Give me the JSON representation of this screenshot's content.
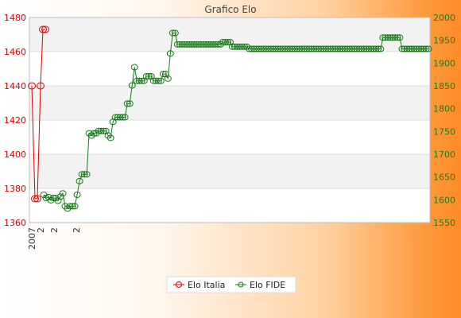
{
  "chart_data": {
    "type": "line",
    "title": "Grafico Elo",
    "grid": true,
    "legend_position": "bottom-center",
    "xlabel": "",
    "y_left": {
      "label": "",
      "ylim": [
        1360,
        1480
      ],
      "ticks": [
        1360,
        1380,
        1400,
        1420,
        1440,
        1460,
        1480
      ],
      "color": "#e00000"
    },
    "y_right": {
      "label": "",
      "ylim": [
        1550,
        2000
      ],
      "ticks": [
        1550,
        1600,
        1650,
        1700,
        1750,
        1800,
        1850,
        1900,
        1950,
        2000
      ],
      "color": "#1a7a1a"
    },
    "x_tick_labels": [
      "2007",
      "2",
      "2",
      "2"
    ],
    "series": [
      {
        "name": "Elo Italia",
        "axis": "left",
        "color": "#e00000",
        "values": [
          1440,
          1374,
          1374,
          1440,
          1473,
          1473
        ]
      },
      {
        "name": "Elo FIDE",
        "axis": "right",
        "color": "#1a7a1a",
        "values": [
          1611,
          1604,
          1606,
          1599,
          1604,
          1604,
          1598,
          1607,
          1614,
          1586,
          1581,
          1586,
          1586,
          1586,
          1611,
          1641,
          1656,
          1656,
          1656,
          1746,
          1741,
          1746,
          1746,
          1751,
          1751,
          1751,
          1751,
          1741,
          1736,
          1771,
          1781,
          1781,
          1781,
          1781,
          1781,
          1811,
          1811,
          1851,
          1891,
          1861,
          1861,
          1861,
          1861,
          1871,
          1871,
          1871,
          1861,
          1861,
          1861,
          1861,
          1876,
          1876,
          1866,
          1921,
          1966,
          1966,
          1941,
          1941,
          1941,
          1941,
          1941,
          1941,
          1941,
          1941,
          1941,
          1941,
          1941,
          1941,
          1941,
          1941,
          1941,
          1941,
          1941,
          1941,
          1941,
          1946,
          1946,
          1946,
          1946,
          1936,
          1936,
          1936,
          1936,
          1936,
          1936,
          1936,
          1931,
          1931,
          1931,
          1931,
          1931,
          1931,
          1931,
          1931,
          1931,
          1931,
          1931,
          1931,
          1931,
          1931,
          1931,
          1931,
          1931,
          1931,
          1931,
          1931,
          1931,
          1931,
          1931,
          1931,
          1931,
          1931,
          1931,
          1931,
          1931,
          1931,
          1931,
          1931,
          1931,
          1931,
          1931,
          1931,
          1931,
          1931,
          1931,
          1931,
          1931,
          1931,
          1931,
          1931,
          1931,
          1931,
          1931,
          1931,
          1931,
          1931,
          1931,
          1931,
          1931,
          1931,
          1931,
          1931,
          1956,
          1956,
          1956,
          1956,
          1956,
          1956,
          1956,
          1956,
          1931,
          1931,
          1931,
          1931,
          1931,
          1931,
          1931,
          1931,
          1931,
          1931,
          1931,
          1931
        ]
      }
    ]
  }
}
